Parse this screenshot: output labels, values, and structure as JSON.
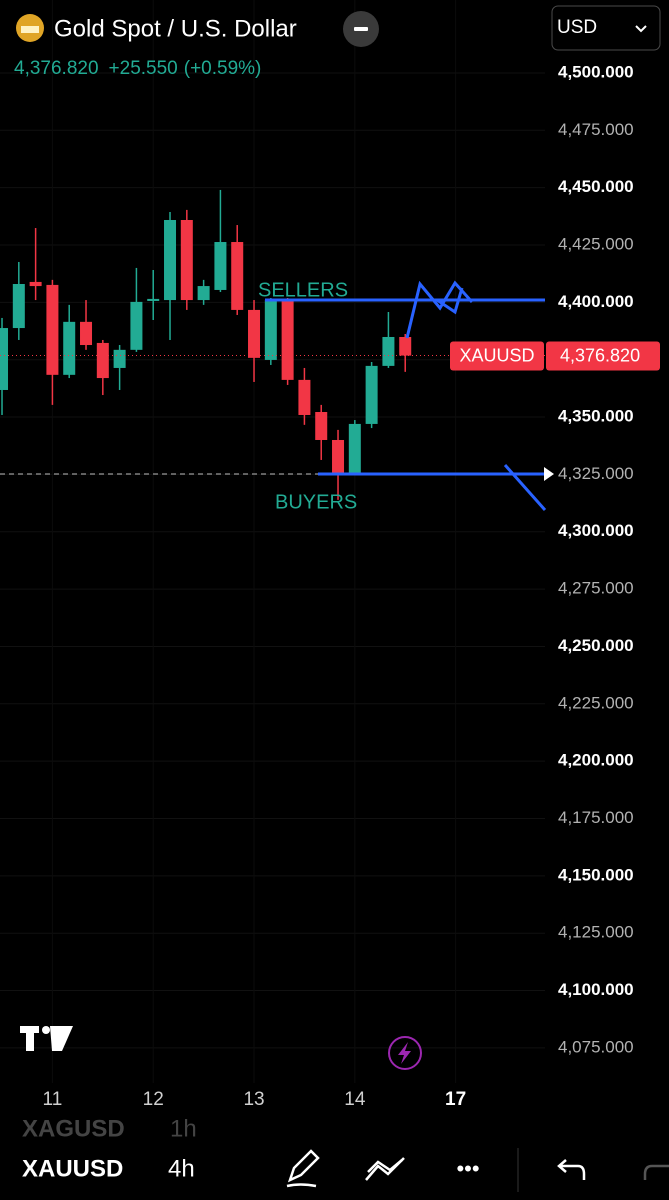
{
  "header": {
    "title": "Gold Spot / U.S. Dollar",
    "price": "4,376.820",
    "change": "+25.550",
    "change_pct": "(+0.59%)",
    "currency": "USD"
  },
  "chart_data": {
    "type": "candlestick",
    "x": [
      0,
      1,
      2,
      3,
      4,
      5,
      6,
      7,
      8,
      9,
      10,
      11,
      12,
      13,
      14,
      15,
      16,
      17,
      18,
      19,
      20,
      21,
      22,
      23,
      24
    ],
    "open": [
      4361.8,
      4388.8,
      4408.9,
      4407.6,
      4368.4,
      4391.5,
      4382.3,
      4371.4,
      4379.3,
      4400.6,
      4401.0,
      4435.9,
      4401.0,
      4405.4,
      4426.3,
      4396.7,
      4374.9,
      4401.0,
      4366.2,
      4352.2,
      4340.0,
      4325.6,
      4347.0,
      4372.3,
      4384.9
    ],
    "high": [
      4393.2,
      4417.6,
      4432.4,
      4409.8,
      4398.9,
      4401.0,
      4383.6,
      4381.4,
      4415.0,
      4414.1,
      4439.4,
      4440.3,
      4409.8,
      4449.0,
      4433.7,
      4401.0,
      4401.9,
      4401.9,
      4371.4,
      4355.3,
      4344.4,
      4348.7,
      4374.0,
      4395.8,
      4386.2
    ],
    "low": [
      4350.9,
      4383.6,
      4401.0,
      4355.3,
      4367.0,
      4379.3,
      4359.6,
      4361.8,
      4378.4,
      4392.3,
      4383.6,
      4396.7,
      4398.9,
      4404.5,
      4394.5,
      4365.3,
      4372.7,
      4364.0,
      4346.6,
      4331.3,
      4313.9,
      4324.8,
      4345.2,
      4371.4,
      4369.7
    ],
    "close": [
      4388.8,
      4408.0,
      4407.1,
      4368.4,
      4391.5,
      4381.4,
      4367.0,
      4379.3,
      4400.2,
      4401.5,
      4435.9,
      4401.0,
      4407.1,
      4426.3,
      4396.7,
      4375.8,
      4401.0,
      4366.2,
      4350.9,
      4340.0,
      4325.6,
      4347.0,
      4372.3,
      4384.9,
      4376.8
    ],
    "up_color": "#22ab94",
    "down_color": "#f23645",
    "xlim": [
      -0.12,
      32.32
    ],
    "xticks": [
      {
        "value": 3,
        "label": "11"
      },
      {
        "value": 9,
        "label": "12"
      },
      {
        "value": 15,
        "label": "13"
      },
      {
        "value": 21,
        "label": "14"
      },
      {
        "value": 27,
        "label": "17"
      }
    ],
    "ylim": [
      4059.7,
      4531.8
    ],
    "yticks": [
      {
        "value": 4500,
        "label": "4,500.000"
      },
      {
        "value": 4475,
        "label": "4,475.000"
      },
      {
        "value": 4450,
        "label": "4,450.000"
      },
      {
        "value": 4425,
        "label": "4,425.000"
      },
      {
        "value": 4400,
        "label": "4,400.000"
      },
      {
        "value": 4375,
        "label": "4,375.000"
      },
      {
        "value": 4350,
        "label": "4,350.000"
      },
      {
        "value": 4325,
        "label": "4,325.000"
      },
      {
        "value": 4300,
        "label": "4,300.000"
      },
      {
        "value": 4275,
        "label": "4,275.000"
      },
      {
        "value": 4250,
        "label": "4,250.000"
      },
      {
        "value": 4225,
        "label": "4,225.000"
      },
      {
        "value": 4200,
        "label": "4,200.000"
      },
      {
        "value": 4175,
        "label": "4,175.000"
      },
      {
        "value": 4150,
        "label": "4,150.000"
      },
      {
        "value": 4125,
        "label": "4,125.000"
      },
      {
        "value": 4100,
        "label": "4,100.000"
      },
      {
        "value": 4075,
        "label": "4,075.000"
      }
    ],
    "last_price": {
      "value": 4376.82,
      "label": "4,376.820"
    },
    "symbol": "XAUUSD",
    "annotations": {
      "sellers": "SELLERS",
      "buyers": "BUYERS"
    },
    "grid": true
  },
  "toolbar": {
    "ghost_symbol": "XAGUSD",
    "ghost_interval": "1h",
    "symbol": "XAUUSD",
    "interval": "4h",
    "more": "•••"
  }
}
